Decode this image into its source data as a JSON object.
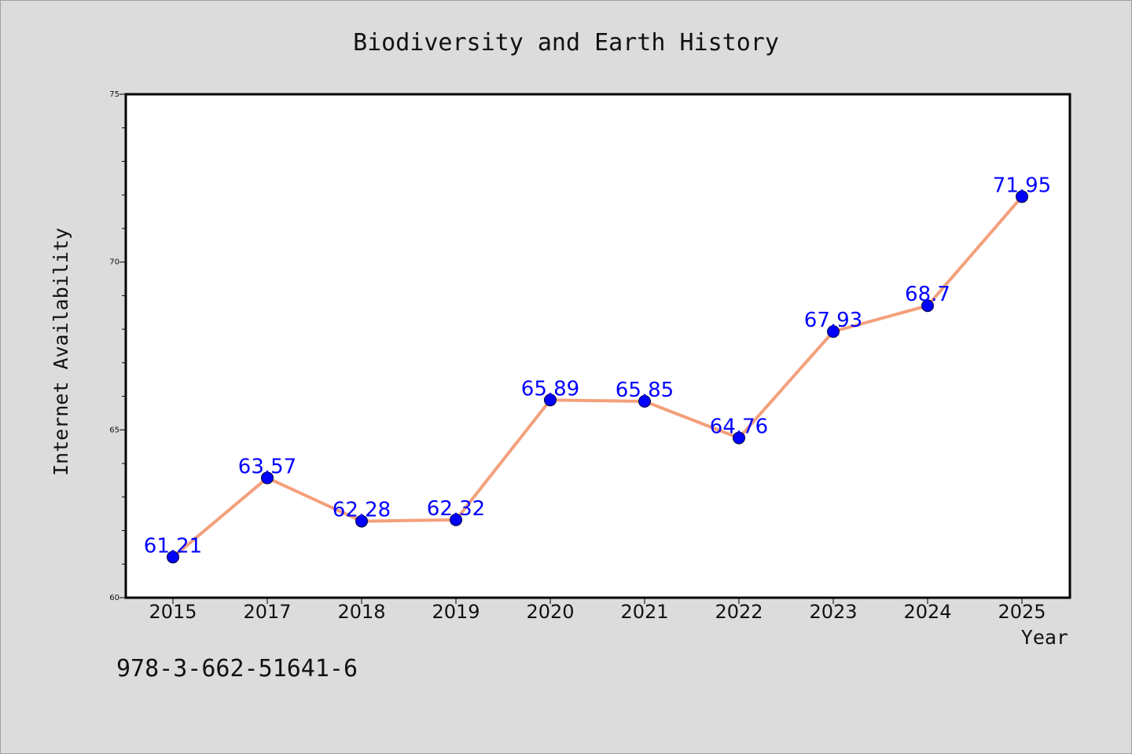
{
  "colors": {
    "background": "#dcdcdc",
    "plot_background": "#ffffff",
    "line": "#f4a07c",
    "marker": "#0000ff",
    "data_label": "#0000ff",
    "text": "#111111"
  },
  "footer": {
    "code": "978-3-662-51641-6"
  },
  "chart_data": {
    "type": "line",
    "title": "Biodiversity and Earth History",
    "xlabel": "Year",
    "ylabel": "Internet Availability",
    "categories": [
      "2015",
      "2017",
      "2018",
      "2019",
      "2020",
      "2021",
      "2022",
      "2023",
      "2024",
      "2025"
    ],
    "series": [
      {
        "values": [
          61.21,
          63.57,
          62.28,
          62.32,
          65.89,
          65.85,
          64.76,
          67.93,
          68.7,
          71.95
        ],
        "labels": [
          "61.21",
          "63.57",
          "62.28",
          "62.32",
          "65.89",
          "65.85",
          "64.76",
          "67.93",
          "68.7",
          "71.95"
        ]
      }
    ],
    "ylim": [
      60,
      75
    ],
    "yticks": [
      60,
      65,
      70,
      75
    ],
    "ytick_labels": [
      "60",
      "65",
      "70",
      "75"
    ],
    "y_minor_step": 1,
    "grid": false,
    "legend": "none"
  }
}
